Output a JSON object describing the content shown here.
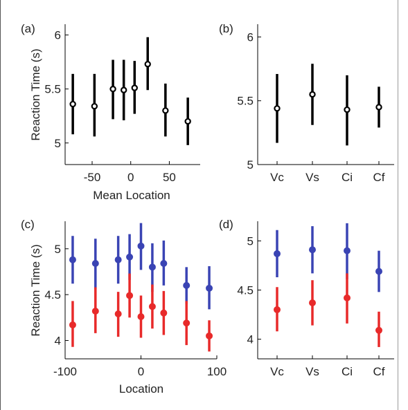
{
  "colors": {
    "black": "#000000",
    "blue": "#3a44b4",
    "red": "#e82a2a"
  },
  "chart_data": [
    {
      "panel": "(a)",
      "type": "scatter",
      "xlabel": "Mean Location",
      "ylabel": "Reaction Time (s)",
      "xlim": [
        -85,
        90
      ],
      "ylim": [
        4.8,
        6.1
      ],
      "xticks": [
        -50,
        0,
        50
      ],
      "yticks": [
        5,
        5.5,
        6
      ],
      "xtick_labels": [
        "-50",
        "0",
        "50"
      ],
      "ytick_labels": [
        "5",
        "5.5",
        "6"
      ],
      "series": [
        {
          "color": "#000000",
          "points": [
            {
              "x": -75,
              "y": 5.36,
              "lo": 5.08,
              "hi": 5.64
            },
            {
              "x": -47,
              "y": 5.34,
              "lo": 5.06,
              "hi": 5.64
            },
            {
              "x": -23,
              "y": 5.5,
              "lo": 5.22,
              "hi": 5.77
            },
            {
              "x": -9,
              "y": 5.49,
              "lo": 5.21,
              "hi": 5.77
            },
            {
              "x": 5,
              "y": 5.51,
              "lo": 5.27,
              "hi": 5.76
            },
            {
              "x": 22,
              "y": 5.73,
              "lo": 5.49,
              "hi": 5.98
            },
            {
              "x": 45,
              "y": 5.3,
              "lo": 5.06,
              "hi": 5.55
            },
            {
              "x": 74,
              "y": 5.2,
              "lo": 4.98,
              "hi": 5.42
            }
          ]
        }
      ]
    },
    {
      "panel": "(b)",
      "type": "scatter",
      "xlabel": "",
      "ylabel": "",
      "categories": [
        "Vc",
        "Vs",
        "Ci",
        "Cf"
      ],
      "ylim": [
        5.0,
        6.1
      ],
      "yticks": [
        5,
        5.5,
        6
      ],
      "ytick_labels": [
        "5",
        "5.5",
        "6"
      ],
      "series": [
        {
          "color": "#000000",
          "points": [
            {
              "x": "Vc",
              "y": 5.44,
              "lo": 5.17,
              "hi": 5.71
            },
            {
              "x": "Vs",
              "y": 5.55,
              "lo": 5.31,
              "hi": 5.79
            },
            {
              "x": "Ci",
              "y": 5.43,
              "lo": 5.15,
              "hi": 5.7
            },
            {
              "x": "Cf",
              "y": 5.45,
              "lo": 5.29,
              "hi": 5.61
            }
          ]
        }
      ]
    },
    {
      "panel": "(c)",
      "type": "scatter",
      "xlabel": "Location",
      "ylabel": "Reaction Time (s)",
      "xlim": [
        -100,
        100
      ],
      "ylim": [
        3.8,
        5.3
      ],
      "xticks": [
        -100,
        0,
        100
      ],
      "yticks": [
        4,
        4.5,
        5
      ],
      "xtick_labels": [
        "-100",
        "0",
        "100"
      ],
      "ytick_labels": [
        "4",
        "4.5",
        "5"
      ],
      "series": [
        {
          "color": "#3a44b4",
          "points": [
            {
              "x": -90,
              "y": 4.88,
              "lo": 4.62,
              "hi": 5.14
            },
            {
              "x": -60,
              "y": 4.84,
              "lo": 4.56,
              "hi": 5.11
            },
            {
              "x": -30,
              "y": 4.88,
              "lo": 4.62,
              "hi": 5.14
            },
            {
              "x": -15,
              "y": 4.91,
              "lo": 4.66,
              "hi": 5.16
            },
            {
              "x": 0,
              "y": 5.03,
              "lo": 4.77,
              "hi": 5.28
            },
            {
              "x": 15,
              "y": 4.8,
              "lo": 4.53,
              "hi": 5.06
            },
            {
              "x": 30,
              "y": 4.84,
              "lo": 4.6,
              "hi": 5.09
            },
            {
              "x": 60,
              "y": 4.6,
              "lo": 4.4,
              "hi": 4.8
            },
            {
              "x": 90,
              "y": 4.57,
              "lo": 4.34,
              "hi": 4.81
            }
          ]
        },
        {
          "color": "#e82a2a",
          "points": [
            {
              "x": -90,
              "y": 4.17,
              "lo": 3.93,
              "hi": 4.43
            },
            {
              "x": -60,
              "y": 4.32,
              "lo": 4.08,
              "hi": 4.58
            },
            {
              "x": -30,
              "y": 4.29,
              "lo": 4.04,
              "hi": 4.53
            },
            {
              "x": -15,
              "y": 4.49,
              "lo": 4.25,
              "hi": 4.73
            },
            {
              "x": 0,
              "y": 4.26,
              "lo": 4.03,
              "hi": 4.49
            },
            {
              "x": 15,
              "y": 4.37,
              "lo": 4.13,
              "hi": 4.61
            },
            {
              "x": 30,
              "y": 4.3,
              "lo": 4.06,
              "hi": 4.54
            },
            {
              "x": 60,
              "y": 4.19,
              "lo": 3.95,
              "hi": 4.43
            },
            {
              "x": 90,
              "y": 4.05,
              "lo": 3.88,
              "hi": 4.22
            }
          ]
        }
      ]
    },
    {
      "panel": "(d)",
      "type": "scatter",
      "xlabel": "",
      "ylabel": "",
      "categories": [
        "Vc",
        "Vs",
        "Ci",
        "Cf"
      ],
      "ylim": [
        3.8,
        5.2
      ],
      "yticks": [
        4,
        4.5,
        5
      ],
      "ytick_labels": [
        "4",
        "4.5",
        "5"
      ],
      "series": [
        {
          "color": "#3a44b4",
          "points": [
            {
              "x": "Vc",
              "y": 4.87,
              "lo": 4.63,
              "hi": 5.11
            },
            {
              "x": "Vs",
              "y": 4.91,
              "lo": 4.67,
              "hi": 5.15
            },
            {
              "x": "Ci",
              "y": 4.9,
              "lo": 4.61,
              "hi": 5.18
            },
            {
              "x": "Cf",
              "y": 4.69,
              "lo": 4.48,
              "hi": 4.9
            }
          ]
        },
        {
          "color": "#e82a2a",
          "points": [
            {
              "x": "Vc",
              "y": 4.3,
              "lo": 4.08,
              "hi": 4.53
            },
            {
              "x": "Vs",
              "y": 4.37,
              "lo": 4.14,
              "hi": 4.6
            },
            {
              "x": "Ci",
              "y": 4.42,
              "lo": 4.16,
              "hi": 4.67
            },
            {
              "x": "Cf",
              "y": 4.09,
              "lo": 3.92,
              "hi": 4.28
            }
          ]
        }
      ]
    }
  ]
}
